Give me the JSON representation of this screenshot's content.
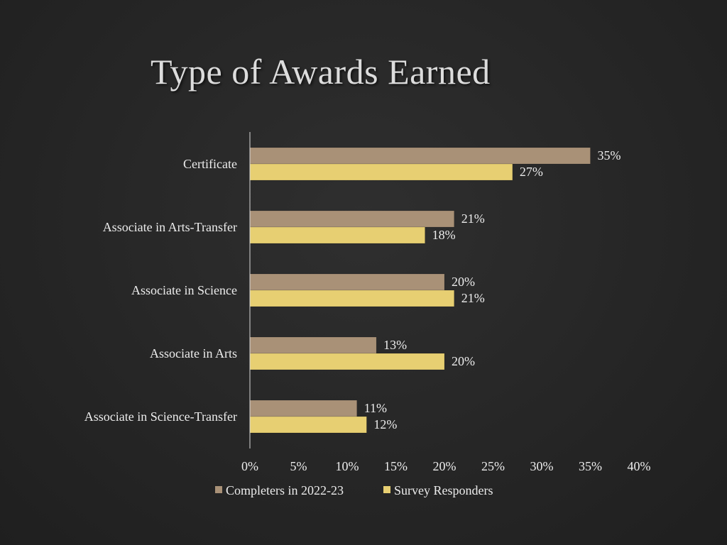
{
  "slide": {
    "title": "Type of Awards Earned"
  },
  "chart_data": {
    "type": "bar",
    "orientation": "horizontal",
    "categories": [
      "Certificate",
      "Associate in Arts-Transfer",
      "Associate in Science",
      "Associate in Arts",
      "Associate in Science-Transfer"
    ],
    "series": [
      {
        "name": "Completers in 2022-23",
        "values": [
          35,
          21,
          20,
          13,
          11
        ],
        "labels": [
          "35%",
          "21%",
          "20%",
          "13%",
          "11%"
        ],
        "color": "#a99177"
      },
      {
        "name": "Survey Responders",
        "values": [
          27,
          18,
          21,
          20,
          12
        ],
        "labels": [
          "27%",
          "18%",
          "21%",
          "20%",
          "12%"
        ],
        "color": "#e7cf72"
      }
    ],
    "xlim": [
      0,
      40
    ],
    "x_ticks": [
      0,
      5,
      10,
      15,
      20,
      25,
      30,
      35,
      40
    ],
    "x_tick_labels": [
      "0%",
      "5%",
      "10%",
      "15%",
      "20%",
      "25%",
      "30%",
      "35%",
      "40%"
    ],
    "xlabel": "",
    "ylabel": "",
    "grid": false,
    "legend_position": "bottom"
  }
}
